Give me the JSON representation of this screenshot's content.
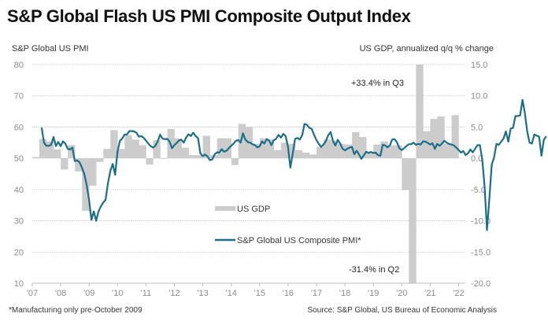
{
  "title": "S&P Global Flash US PMI Composite Output Index",
  "footnote": "*Manufacturing only pre-October 2009",
  "source": "Source: S&P Global, US Bureau of Economic Analysis",
  "colors": {
    "pmi_line": "#1a6e8a",
    "gdp_bar": "#cccccc",
    "grid": "#c8c8c8",
    "tick_text": "#8a8a8a"
  },
  "chart_data": {
    "type": "bar+line",
    "title": "S&P Global Flash US PMI Composite Output Index",
    "left_axis": {
      "label": "S&P Global US PMI",
      "range": [
        10,
        80
      ],
      "ticks": [
        80,
        70,
        60,
        50,
        40,
        30,
        20,
        10
      ]
    },
    "right_axis": {
      "label": "US GDP, annualized q/q % change",
      "range": [
        -20,
        15
      ],
      "ticks": [
        "15.0",
        "10.0",
        "5.0",
        "0.0",
        "-5.0",
        "-10.0",
        "-15.0",
        "-20.0"
      ]
    },
    "x_ticks": [
      "'07",
      "'08",
      "'09",
      "'10",
      "'11",
      "'12",
      "'13",
      "'14",
      "'15",
      "'16",
      "'17",
      "'18",
      "'19",
      "'20",
      "'21",
      "'22"
    ],
    "x_range": [
      2007.0,
      2022.25
    ],
    "grid": true,
    "legend": [
      {
        "name": "US GDP",
        "type": "bar"
      },
      {
        "name": "S&P Global US Composite PMI*",
        "type": "line"
      }
    ],
    "legend_placement": "center",
    "annotations": [
      {
        "text": "+33.4% in Q3",
        "x": 2020.5,
        "axis": "right",
        "value": 33.4
      },
      {
        "text": "-31.4% in Q2",
        "x": 2020.25,
        "axis": "right",
        "value": -31.4
      }
    ],
    "series": [
      {
        "name": "US GDP",
        "type": "bar",
        "axis": "right",
        "frequency": "quarterly",
        "start": 2007.0,
        "values": [
          0.2,
          3.1,
          2.7,
          1.4,
          -1.8,
          2.1,
          -2.1,
          -8.4,
          -4.4,
          -0.6,
          1.5,
          4.5,
          1.5,
          3.7,
          3.0,
          2.1,
          -1.0,
          2.9,
          -0.1,
          4.7,
          3.2,
          1.7,
          0.5,
          0.5,
          3.6,
          0.5,
          3.2,
          3.2,
          -1.1,
          5.5,
          5.0,
          2.3,
          3.2,
          3.0,
          1.3,
          2.5,
          2.3,
          1.3,
          0.9,
          0.6,
          1.8,
          3.0,
          2.8,
          2.3,
          2.2,
          4.2,
          3.4,
          0.9,
          2.2,
          2.7,
          2.1,
          2.1,
          -5.1,
          -31.4,
          33.4,
          4.3,
          6.3,
          6.7,
          2.3,
          6.9
        ]
      },
      {
        "name": "S&P Global US Composite PMI*",
        "type": "line",
        "axis": "left",
        "frequency": "monthly",
        "start": 2007.33,
        "values": [
          59.8,
          55.0,
          54.0,
          54.0,
          54.3,
          56.8,
          53.9,
          55.2,
          53.9,
          55.4,
          54.7,
          53.0,
          52.8,
          53.4,
          49.1,
          49.3,
          48.7,
          47.0,
          44.9,
          41.4,
          36.7,
          30.3,
          33.0,
          30.0,
          33.0,
          34.6,
          35.8,
          36.7,
          42.0,
          46.0,
          48.2,
          44.7,
          52.0,
          55.5,
          56.3,
          57.6,
          57.6,
          58.7,
          58.7,
          58.6,
          58.2,
          56.9,
          57.1,
          56.6,
          55.7,
          54.7,
          53.9,
          53.4,
          54.0,
          55.4,
          57.6,
          56.3,
          56.1,
          56.2,
          55.3,
          53.2,
          54.2,
          54.9,
          55.7,
          55.9,
          55.0,
          56.6,
          57.7,
          57.1,
          58.2,
          57.1,
          56.4,
          51.6,
          50.7,
          51.2,
          50.6,
          49.4,
          49.6,
          51.2,
          51.9,
          51.8,
          52.9,
          52.1,
          52.4,
          53.2,
          54.0,
          54.7,
          55.6,
          55.8,
          55.0,
          58.0,
          56.0,
          55.2,
          55.0,
          54.5,
          54.2,
          53.5,
          53.8,
          55.4,
          54.7,
          56.1,
          55.7,
          54.2,
          55.8,
          56.2,
          57.5,
          56.6,
          57.8,
          57.1,
          53.6,
          47.0,
          51.5,
          56.2,
          56.5,
          56.0,
          57.4,
          61.0,
          60.7,
          59.7,
          59.4,
          57.5,
          55.8,
          54.6,
          53.6,
          54.4,
          55.5,
          57.4,
          58.4,
          55.5,
          54.1,
          55.9,
          54.7,
          53.1,
          52.5,
          53.0,
          53.4,
          53.6,
          51.3,
          52.4,
          51.2,
          49.8,
          50.9,
          52.1,
          51.7,
          52.0,
          51.7,
          51.8,
          51.0,
          50.8,
          54.3,
          54.1,
          53.5,
          54.1,
          56.0,
          56.1,
          55.1,
          53.2,
          52.6,
          53.2,
          53.9,
          54.5,
          54.5,
          55.0,
          54.3,
          54.6,
          54.4,
          55.4,
          55.3,
          54.9,
          54.4,
          54.8,
          53.0,
          54.6,
          54.0,
          54.7,
          55.6,
          55.0,
          54.6,
          54.4,
          54.1,
          53.4,
          52.7,
          51.8,
          52.3,
          51.0,
          51.6,
          52.8,
          51.9,
          53.0,
          54.2,
          54.2,
          49.6,
          40.9,
          27.0,
          37.0,
          47.9,
          50.3,
          54.6,
          54.3,
          55.3,
          56.3,
          58.6,
          55.3,
          59.5,
          59.7,
          63.5,
          63.5,
          63.7,
          68.7,
          64.5,
          58.6,
          55.0,
          54.7,
          57.6,
          57.2,
          56.9,
          50.8,
          55.9,
          57.0
        ]
      }
    ]
  }
}
